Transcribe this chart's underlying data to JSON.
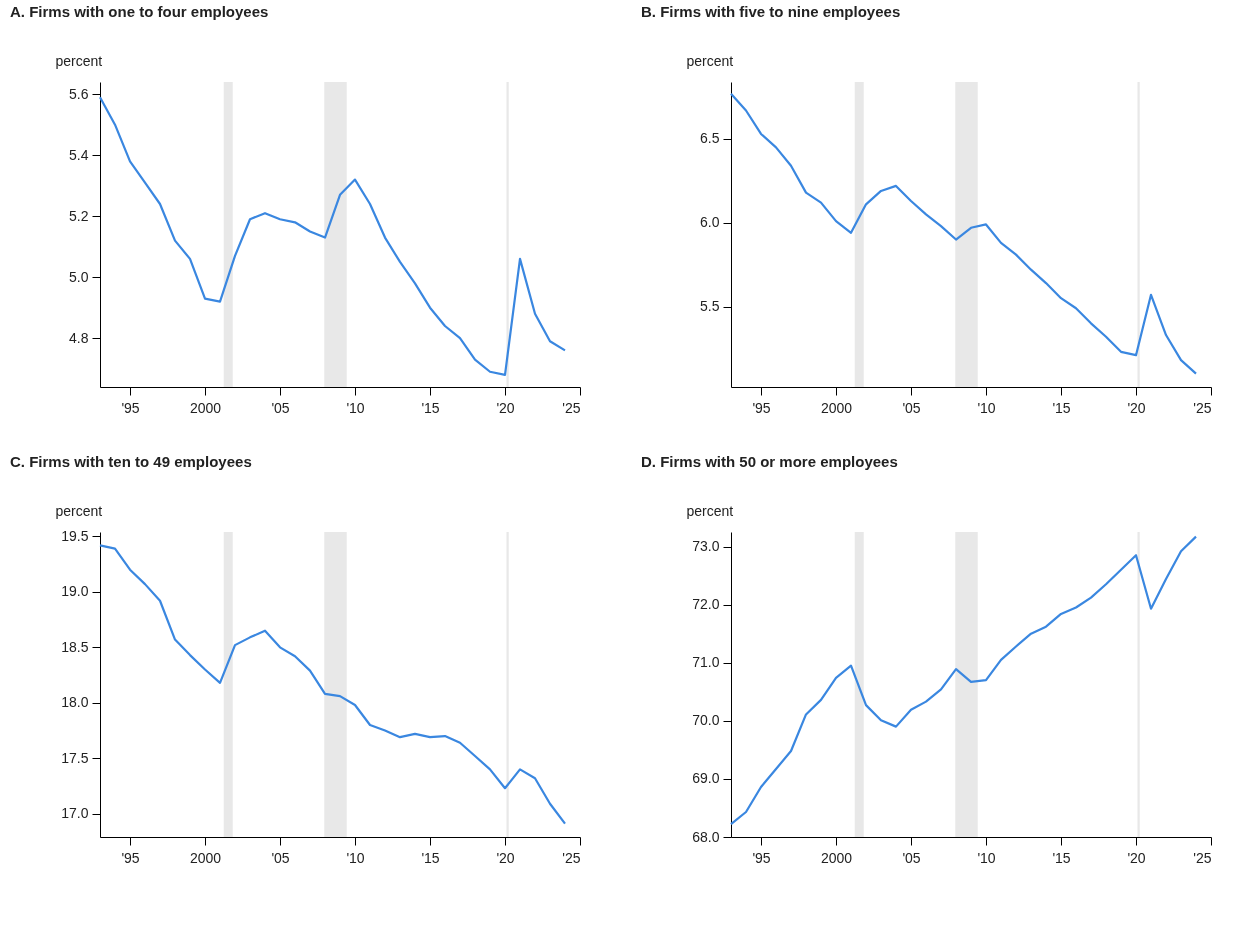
{
  "chart_data": [
    {
      "type": "line",
      "title": "A. Firms with one to four employees",
      "ylabel": "percent",
      "x": [
        1993,
        1994,
        1995,
        1996,
        1997,
        1998,
        1999,
        2000,
        2001,
        2002,
        2003,
        2004,
        2005,
        2006,
        2007,
        2008,
        2009,
        2010,
        2011,
        2012,
        2013,
        2014,
        2015,
        2016,
        2017,
        2018,
        2019,
        2020,
        2021,
        2022,
        2023,
        2024
      ],
      "series": [
        {
          "color": "#3a87e0",
          "values": [
            5.59,
            5.5,
            5.38,
            5.31,
            5.24,
            5.12,
            5.06,
            4.93,
            4.92,
            5.07,
            5.19,
            5.21,
            5.19,
            5.18,
            5.15,
            5.13,
            5.27,
            5.32,
            5.24,
            5.13,
            5.05,
            4.98,
            4.9,
            4.84,
            4.8,
            4.73,
            4.69,
            4.68,
            5.06,
            4.88,
            4.79,
            4.76
          ]
        }
      ],
      "xlim": [
        1993,
        2025
      ],
      "xticks": [
        {
          "value": 1995,
          "label": "'95"
        },
        {
          "value": 2000,
          "label": "2000"
        },
        {
          "value": 2005,
          "label": "'05"
        },
        {
          "value": 2010,
          "label": "'10"
        },
        {
          "value": 2015,
          "label": "'15"
        },
        {
          "value": 2020,
          "label": "'20"
        },
        {
          "value": 2025,
          "label": "'25"
        }
      ],
      "ylim": [
        4.64,
        5.64
      ],
      "yticks": [
        {
          "value": 4.8,
          "label": "4.8"
        },
        {
          "value": 5.0,
          "label": "5.0"
        },
        {
          "value": 5.2,
          "label": "5.2"
        },
        {
          "value": 5.4,
          "label": "5.4"
        },
        {
          "value": 5.6,
          "label": "5.6"
        }
      ],
      "bands": [
        {
          "axis": "x",
          "from": 2001.25,
          "to": 2001.85,
          "color": "#e8e8e8"
        },
        {
          "axis": "x",
          "from": 2007.95,
          "to": 2009.45,
          "color": "#e8e8e8"
        },
        {
          "axis": "x",
          "from": 2020.1,
          "to": 2020.25,
          "color": "#e8e8e8"
        }
      ],
      "grid": false,
      "marker": "none",
      "line_style": "solid"
    },
    {
      "type": "line",
      "title": "B. Firms with five to nine employees",
      "ylabel": "percent",
      "x": [
        1993,
        1994,
        1995,
        1996,
        1997,
        1998,
        1999,
        2000,
        2001,
        2002,
        2003,
        2004,
        2005,
        2006,
        2007,
        2008,
        2009,
        2010,
        2011,
        2012,
        2013,
        2014,
        2015,
        2016,
        2017,
        2018,
        2019,
        2020,
        2021,
        2022,
        2023,
        2024
      ],
      "series": [
        {
          "color": "#3a87e0",
          "values": [
            6.77,
            6.67,
            6.53,
            6.45,
            6.34,
            6.18,
            6.12,
            6.01,
            5.94,
            6.11,
            6.19,
            6.22,
            6.13,
            6.05,
            5.98,
            5.9,
            5.97,
            5.99,
            5.88,
            5.81,
            5.72,
            5.64,
            5.55,
            5.49,
            5.4,
            5.32,
            5.23,
            5.21,
            5.57,
            5.33,
            5.18,
            5.1
          ]
        }
      ],
      "xlim": [
        1993,
        2025
      ],
      "xticks": [
        {
          "value": 1995,
          "label": "'95"
        },
        {
          "value": 2000,
          "label": "2000"
        },
        {
          "value": 2005,
          "label": "'05"
        },
        {
          "value": 2010,
          "label": "'10"
        },
        {
          "value": 2015,
          "label": "'15"
        },
        {
          "value": 2020,
          "label": "'20"
        },
        {
          "value": 2025,
          "label": "'25"
        }
      ],
      "ylim": [
        5.02,
        6.84
      ],
      "yticks": [
        {
          "value": 5.5,
          "label": "5.5"
        },
        {
          "value": 6.0,
          "label": "6.0"
        },
        {
          "value": 6.5,
          "label": "6.5"
        }
      ],
      "bands": [
        {
          "axis": "x",
          "from": 2001.25,
          "to": 2001.85,
          "color": "#e8e8e8"
        },
        {
          "axis": "x",
          "from": 2007.95,
          "to": 2009.45,
          "color": "#e8e8e8"
        },
        {
          "axis": "x",
          "from": 2020.1,
          "to": 2020.25,
          "color": "#e8e8e8"
        }
      ],
      "grid": false,
      "marker": "none",
      "line_style": "solid"
    },
    {
      "type": "line",
      "title": "C. Firms with ten to 49 employees",
      "ylabel": "percent",
      "x": [
        1993,
        1994,
        1995,
        1996,
        1997,
        1998,
        1999,
        2000,
        2001,
        2002,
        2003,
        2004,
        2005,
        2006,
        2007,
        2008,
        2009,
        2010,
        2011,
        2012,
        2013,
        2014,
        2015,
        2016,
        2017,
        2018,
        2019,
        2020,
        2021,
        2022,
        2023,
        2024
      ],
      "series": [
        {
          "color": "#3a87e0",
          "values": [
            19.42,
            19.39,
            19.2,
            19.07,
            18.92,
            18.57,
            18.43,
            18.3,
            18.18,
            18.52,
            18.59,
            18.65,
            18.5,
            18.42,
            18.29,
            18.08,
            18.06,
            17.98,
            17.8,
            17.75,
            17.69,
            17.72,
            17.69,
            17.7,
            17.64,
            17.52,
            17.4,
            17.23,
            17.4,
            17.32,
            17.09,
            16.91
          ]
        }
      ],
      "xlim": [
        1993,
        2025
      ],
      "xticks": [
        {
          "value": 1995,
          "label": "'95"
        },
        {
          "value": 2000,
          "label": "2000"
        },
        {
          "value": 2005,
          "label": "'05"
        },
        {
          "value": 2010,
          "label": "'10"
        },
        {
          "value": 2015,
          "label": "'15"
        },
        {
          "value": 2020,
          "label": "'20"
        },
        {
          "value": 2025,
          "label": "'25"
        }
      ],
      "ylim": [
        16.79,
        19.54
      ],
      "yticks": [
        {
          "value": 17.0,
          "label": "17.0"
        },
        {
          "value": 17.5,
          "label": "17.5"
        },
        {
          "value": 18.0,
          "label": "18.0"
        },
        {
          "value": 18.5,
          "label": "18.5"
        },
        {
          "value": 19.0,
          "label": "19.0"
        },
        {
          "value": 19.5,
          "label": "19.5"
        }
      ],
      "bands": [
        {
          "axis": "x",
          "from": 2001.25,
          "to": 2001.85,
          "color": "#e8e8e8"
        },
        {
          "axis": "x",
          "from": 2007.95,
          "to": 2009.45,
          "color": "#e8e8e8"
        },
        {
          "axis": "x",
          "from": 2020.1,
          "to": 2020.25,
          "color": "#e8e8e8"
        }
      ],
      "grid": false,
      "marker": "none",
      "line_style": "solid"
    },
    {
      "type": "line",
      "title": "D. Firms with 50 or more employees",
      "ylabel": "percent",
      "x": [
        1993,
        1994,
        1995,
        1996,
        1997,
        1998,
        1999,
        2000,
        2001,
        2002,
        2003,
        2004,
        2005,
        2006,
        2007,
        2008,
        2009,
        2010,
        2011,
        2012,
        2013,
        2014,
        2015,
        2016,
        2017,
        2018,
        2019,
        2020,
        2021,
        2022,
        2023,
        2024
      ],
      "series": [
        {
          "color": "#3a87e0",
          "values": [
            68.22,
            68.43,
            68.86,
            69.17,
            69.48,
            70.11,
            70.36,
            70.74,
            70.95,
            70.27,
            70.01,
            69.9,
            70.19,
            70.33,
            70.54,
            70.89,
            70.67,
            70.7,
            71.05,
            71.28,
            71.5,
            71.62,
            71.84,
            71.95,
            72.12,
            72.35,
            72.6,
            72.85,
            71.93,
            72.44,
            72.92,
            73.17
          ]
        }
      ],
      "xlim": [
        1993,
        2025
      ],
      "xticks": [
        {
          "value": 1995,
          "label": "'95"
        },
        {
          "value": 2000,
          "label": "2000"
        },
        {
          "value": 2005,
          "label": "'05"
        },
        {
          "value": 2010,
          "label": "'10"
        },
        {
          "value": 2015,
          "label": "'15"
        },
        {
          "value": 2020,
          "label": "'20"
        },
        {
          "value": 2025,
          "label": "'25"
        }
      ],
      "ylim": [
        68.0,
        73.25
      ],
      "yticks": [
        {
          "value": 68,
          "label": "68.0"
        },
        {
          "value": 69,
          "label": "69.0"
        },
        {
          "value": 70,
          "label": "70.0"
        },
        {
          "value": 71,
          "label": "71.0"
        },
        {
          "value": 72,
          "label": "72.0"
        },
        {
          "value": 73,
          "label": "73.0"
        }
      ],
      "bands": [
        {
          "axis": "x",
          "from": 2001.25,
          "to": 2001.85,
          "color": "#e8e8e8"
        },
        {
          "axis": "x",
          "from": 2007.95,
          "to": 2009.45,
          "color": "#e8e8e8"
        },
        {
          "axis": "x",
          "from": 2020.1,
          "to": 2020.25,
          "color": "#e8e8e8"
        }
      ],
      "grid": false,
      "marker": "none",
      "line_style": "solid"
    }
  ]
}
